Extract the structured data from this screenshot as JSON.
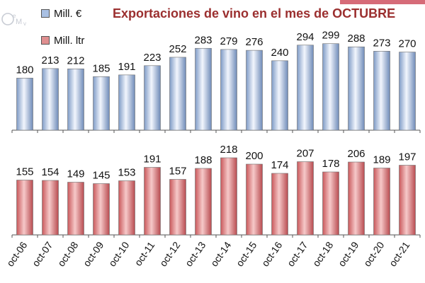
{
  "chart_data": {
    "type": "bar",
    "title": "Exportaciones de vino en el mes de OCTUBRE",
    "categories": [
      "oct-06",
      "oct-07",
      "oct-08",
      "oct-09",
      "oct-10",
      "oct-11",
      "oct-12",
      "oct-13",
      "oct-14",
      "oct-15",
      "oct-16",
      "oct-17",
      "oct-18",
      "oct-19",
      "oct-20",
      "oct-21"
    ],
    "series": [
      {
        "name": "Mill. €",
        "values": [
          180,
          213,
          212,
          185,
          191,
          223,
          252,
          283,
          279,
          276,
          240,
          294,
          299,
          288,
          273,
          270
        ],
        "color": "#a9c0e3"
      },
      {
        "name": "Mill. ltr",
        "values": [
          155,
          154,
          149,
          145,
          153,
          191,
          157,
          188,
          218,
          200,
          174,
          207,
          178,
          206,
          189,
          197
        ],
        "color": "#e08f90"
      }
    ],
    "layout": "two stacked panels sharing x axis; values labeled above bars",
    "legend_position": "top-left",
    "grid": false
  },
  "logo": {
    "text": "OeMv"
  }
}
